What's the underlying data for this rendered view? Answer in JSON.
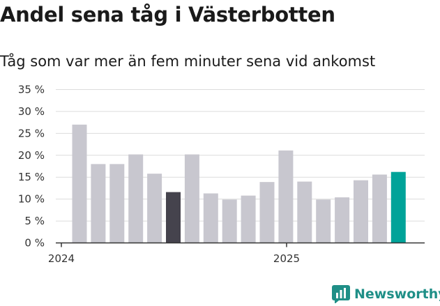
{
  "header": {
    "title": "Andel sena tåg i Västerbotten",
    "subtitle": "Tåg som var mer än fem minuter sena vid ankomst"
  },
  "brand": {
    "name": "Newsworthy",
    "icon": "newsworthy-chart-icon",
    "color": "#1f8f87"
  },
  "chart_data": {
    "type": "bar",
    "categories": [
      "2024-01",
      "2024-02",
      "2024-03",
      "2024-04",
      "2024-05",
      "2024-06",
      "2024-07",
      "2024-08",
      "2024-09",
      "2024-10",
      "2024-11",
      "2024-12",
      "2025-01",
      "2025-02",
      "2025-03",
      "2025-04",
      "2025-05",
      "2025-06"
    ],
    "values": [
      27,
      18,
      18,
      20.2,
      15.8,
      11.6,
      20.2,
      11.3,
      9.9,
      10.8,
      13.9,
      21.1,
      14,
      9.9,
      10.4,
      14.3,
      15.6,
      16.2
    ],
    "highlight": {
      "2024-06": "#45434d",
      "2025-06": "#00a399"
    },
    "bar_color": "#c8c7cf",
    "y_ticks": [
      0,
      5,
      10,
      15,
      20,
      25,
      30,
      35
    ],
    "y_tick_labels": [
      "0 %",
      "5 %",
      "10 %",
      "15 %",
      "20 %",
      "25 %",
      "30 %",
      "35 %"
    ],
    "x_tick_labels": [
      {
        "label": "2024",
        "index": 0
      },
      {
        "label": "2025",
        "index": 12
      }
    ],
    "ylim": [
      0,
      35
    ],
    "grid": true
  }
}
